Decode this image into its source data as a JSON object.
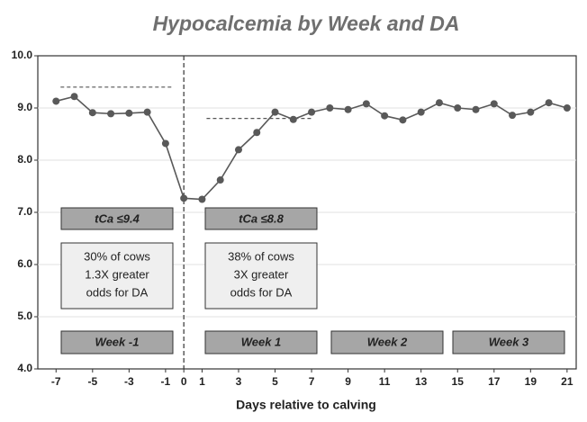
{
  "chart_data": {
    "type": "line",
    "title": "Hypocalcemia by Week and DA",
    "x_label": "Days relative to calving",
    "x": [
      -7,
      -6,
      -5,
      -4,
      -3,
      -2,
      -1,
      0,
      1,
      2,
      3,
      4,
      5,
      6,
      7,
      8,
      9,
      10,
      11,
      12,
      13,
      14,
      15,
      16,
      17,
      18,
      19,
      20,
      21
    ],
    "series": [
      {
        "color": "#595959",
        "values": [
          9.13,
          9.22,
          8.91,
          8.89,
          8.9,
          8.92,
          8.32,
          7.27,
          7.25,
          7.62,
          8.2,
          8.53,
          8.92,
          8.78,
          8.92,
          9.0,
          8.97,
          9.08,
          8.85,
          8.77,
          8.92,
          9.1,
          9.0,
          8.97,
          9.08,
          8.86,
          8.92,
          9.1,
          9.0
        ]
      }
    ],
    "xlim": [
      -8,
      21.5
    ],
    "xticks": [
      -7,
      -5,
      -3,
      -1,
      0,
      1,
      3,
      5,
      7,
      9,
      11,
      13,
      15,
      17,
      19,
      21
    ],
    "ylim": [
      4,
      10
    ],
    "yticks": [
      {
        "value": 4,
        "label": "4.0"
      },
      {
        "value": 5,
        "label": "5.0"
      },
      {
        "value": 6,
        "label": "6.0"
      },
      {
        "value": 7,
        "label": "7.0"
      },
      {
        "value": 8,
        "label": "8.0"
      },
      {
        "value": 9,
        "label": "9.0"
      },
      {
        "value": 10,
        "label": "10.0"
      }
    ],
    "grid": true,
    "reference_lines": [
      9.4,
      8.8
    ],
    "vertical_line": 0,
    "threshold_labels": [
      "tCa ≤9.4",
      "tCa ≤8.8"
    ],
    "notes": [
      [
        "30% of cows",
        "1.3X greater",
        "odds for DA"
      ],
      [
        "38% of cows",
        "3X greater",
        "odds for DA"
      ]
    ],
    "weeks": [
      "Week -1",
      "Week 1",
      "Week 2",
      "Week 3"
    ]
  }
}
